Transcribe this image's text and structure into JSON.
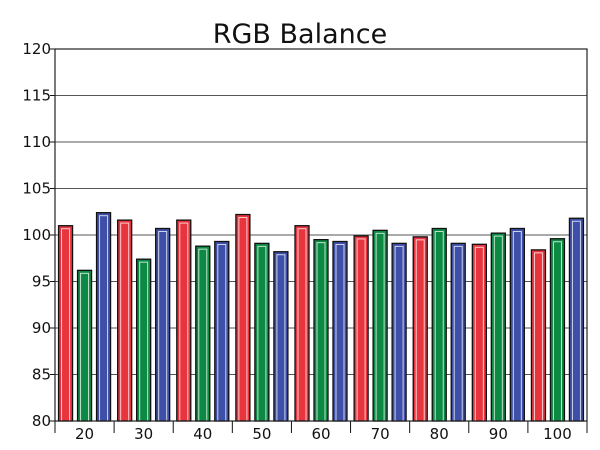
{
  "chart_data": {
    "type": "bar",
    "title": "RGB Balance",
    "xlabel": "",
    "ylabel": "",
    "categories": [
      "20",
      "30",
      "40",
      "50",
      "60",
      "70",
      "80",
      "90",
      "100"
    ],
    "series": [
      {
        "values": [
          101.0,
          101.6,
          101.6,
          102.2,
          101.0,
          99.9,
          99.8,
          99.0,
          98.4
        ]
      },
      {
        "values": [
          96.2,
          97.4,
          98.8,
          99.1,
          99.5,
          100.5,
          100.7,
          100.2,
          99.6
        ]
      },
      {
        "values": [
          102.4,
          100.7,
          99.3,
          98.2,
          99.3,
          99.1,
          99.1,
          100.7,
          101.8
        ]
      }
    ],
    "series_colors": [
      "#e8353d",
      "#0c8a44",
      "#3e4fa8"
    ],
    "ylim": [
      80,
      120
    ],
    "yticks": [
      80,
      85,
      90,
      95,
      100,
      105,
      110,
      115,
      120
    ],
    "grid": true,
    "legend": "none"
  }
}
